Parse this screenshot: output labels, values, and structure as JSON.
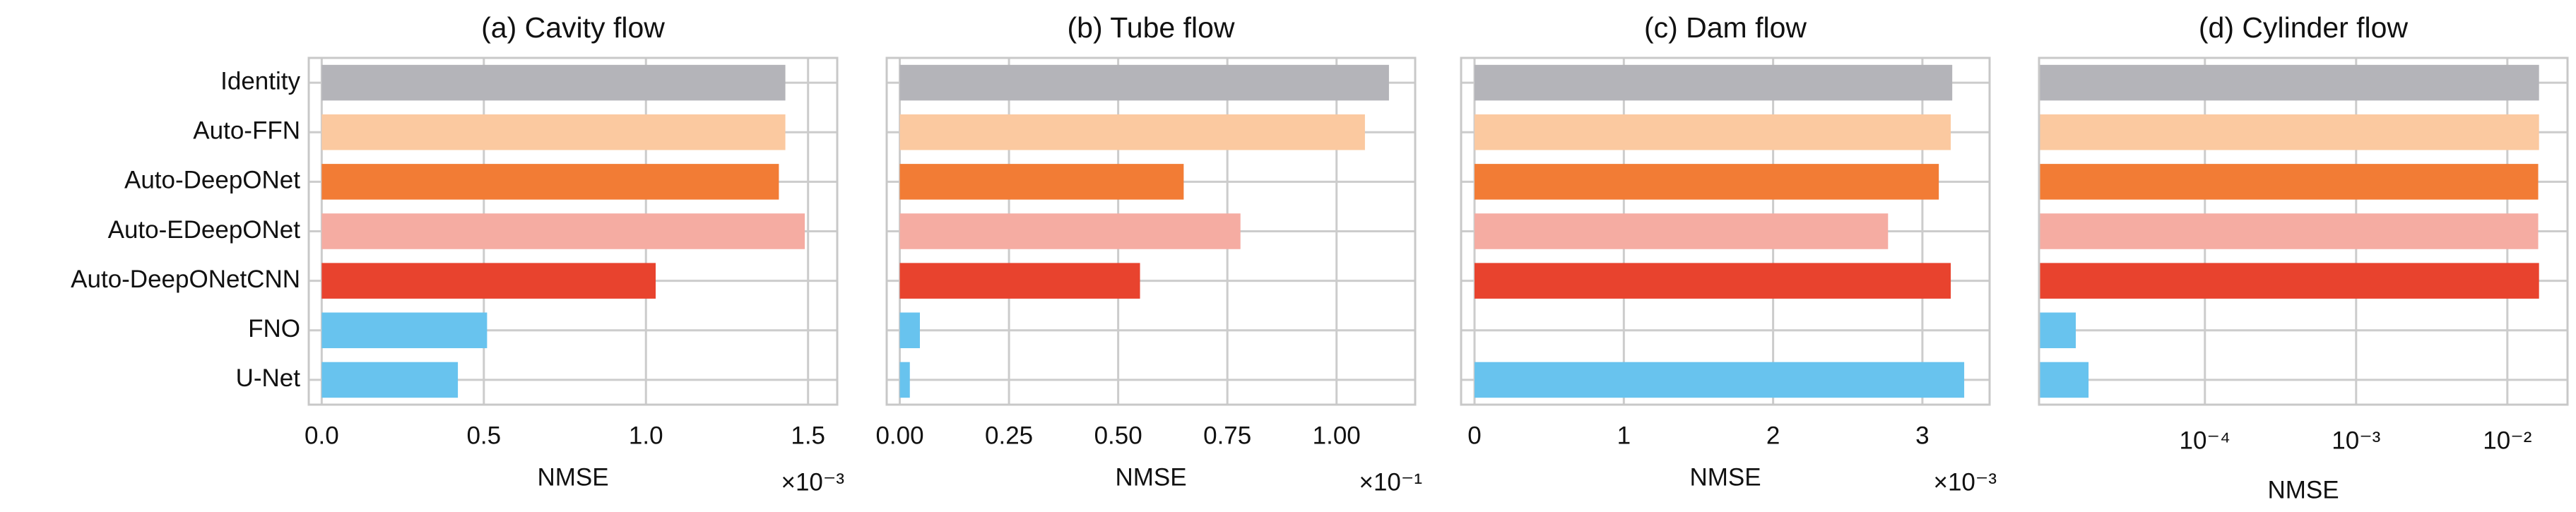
{
  "chart_data": [
    {
      "type": "bar",
      "title": "(a) Cavity flow",
      "xlabel": "NMSE",
      "axis_multiplier": "×10⁻³",
      "categories": [
        "Identity",
        "Auto-FFN",
        "Auto-DeepONet",
        "Auto-EDeepONet",
        "Auto-DeepONetCNN",
        "FNO",
        "U-Net"
      ],
      "values": [
        1.43,
        1.43,
        1.41,
        1.49,
        1.03,
        0.51,
        0.42
      ],
      "colors": [
        "#b4b4b9",
        "#fbc9a0",
        "#f27c35",
        "#f5aca2",
        "#e8432e",
        "#68c3ee",
        "#68c3ee"
      ],
      "xlim": [
        -0.04,
        1.59
      ],
      "xticks": [
        {
          "value": 0,
          "label": "0.0"
        },
        0.5,
        {
          "value": 1,
          "label": "1.0"
        },
        1.5
      ],
      "grid": true
    },
    {
      "type": "bar",
      "title": "(b) Tube flow",
      "xlabel": "NMSE",
      "axis_multiplier": "×10⁻¹",
      "values": [
        1.12,
        1.065,
        0.65,
        0.78,
        0.55,
        0.046,
        0.023
      ],
      "colors": [
        "#b4b4b9",
        "#fbc9a0",
        "#f27c35",
        "#f5aca2",
        "#e8432e",
        "#68c3ee",
        "#68c3ee"
      ],
      "xlim": [
        -0.03,
        1.18
      ],
      "xticks": [
        {
          "value": 0,
          "label": "0.00"
        },
        0.25,
        {
          "value": 0.5,
          "label": "0.50"
        },
        0.75,
        {
          "value": 1,
          "label": "1.00"
        }
      ],
      "grid": true
    },
    {
      "type": "bar",
      "title": "(c) Dam flow",
      "xlabel": "NMSE",
      "axis_multiplier": "×10⁻³",
      "values": [
        3.2,
        3.19,
        3.11,
        2.77,
        3.19,
        null,
        3.28
      ],
      "colors": [
        "#b4b4b9",
        "#fbc9a0",
        "#f27c35",
        "#f5aca2",
        "#e8432e",
        "#68c3ee",
        "#68c3ee"
      ],
      "xlim": [
        -0.09,
        3.45
      ],
      "xticks": [
        0,
        1,
        2,
        3
      ],
      "grid": true
    },
    {
      "type": "bar",
      "title": "(d) Cylinder flow",
      "xlabel": "NMSE",
      "log_x": true,
      "values": [
        0.0162,
        0.0162,
        0.016,
        0.016,
        0.0162,
        1.4e-05,
        1.7e-05
      ],
      "colors": [
        "#b4b4b9",
        "#fbc9a0",
        "#f27c35",
        "#f5aca2",
        "#e8432e",
        "#68c3ee",
        "#68c3ee"
      ],
      "xlim": [
        8e-06,
        0.025
      ],
      "xticks": [
        {
          "value": 0.0001,
          "label": "10⁻⁴"
        },
        {
          "value": 0.001,
          "label": "10⁻³"
        },
        {
          "value": 0.01,
          "label": "10⁻²"
        }
      ],
      "grid": true
    }
  ]
}
